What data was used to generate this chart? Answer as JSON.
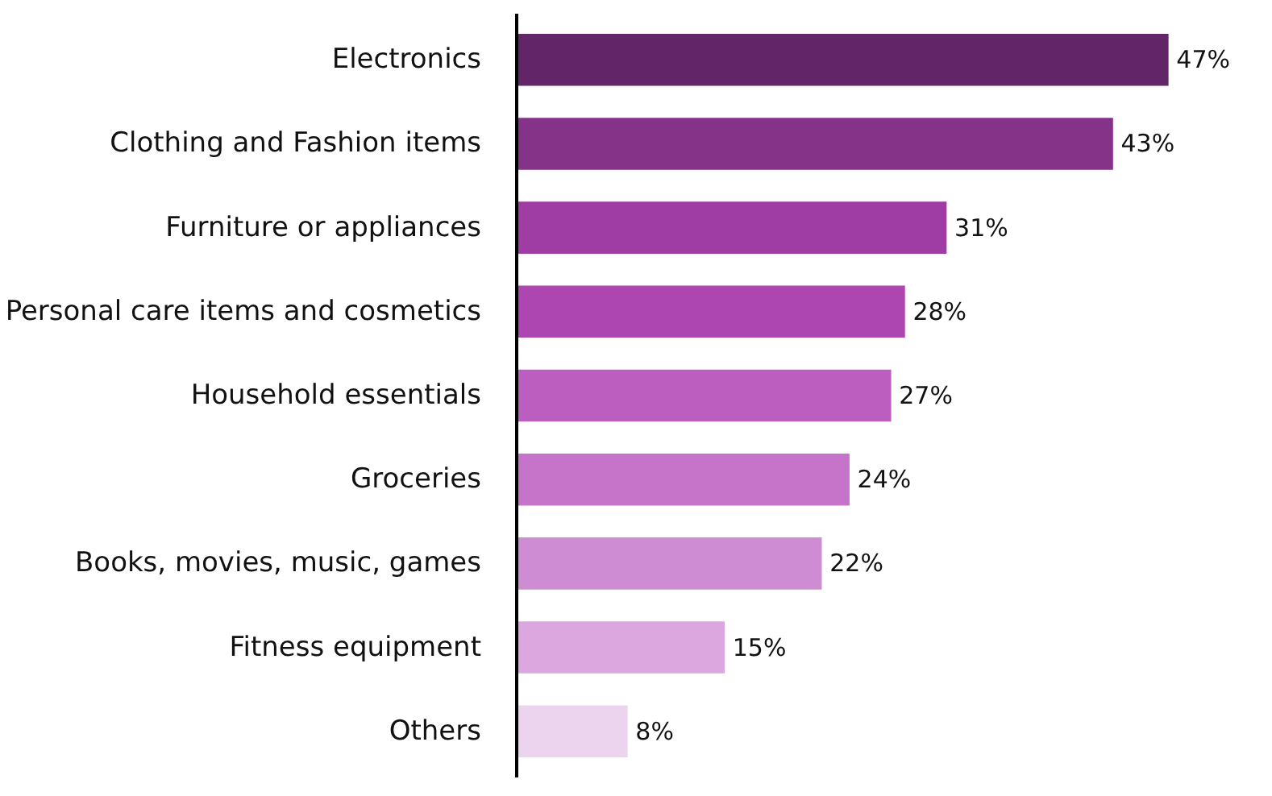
{
  "chart_data": {
    "type": "bar",
    "orientation": "horizontal",
    "data_labels": true,
    "value_labels": [
      "47%",
      "43%",
      "31%",
      "28%",
      "27%",
      "24%",
      "22%",
      "15%",
      "8%"
    ],
    "categories": [
      "Electronics",
      "Clothing and Fashion items",
      "Furniture or appliances",
      "Personal care items and cosmetics",
      "Household essentials",
      "Groceries",
      "Books, movies, music, games",
      "Fitness equipment",
      "Others"
    ],
    "values": [
      47,
      43,
      31,
      28,
      27,
      24,
      22,
      15,
      8
    ],
    "colors": [
      "#622567",
      "#843388",
      "#a03da4",
      "#ae46b1",
      "#bb5ec0",
      "#c574ca",
      "#ce8cd2",
      "#dca7de",
      "#ecd3ee"
    ],
    "grid": false
  }
}
